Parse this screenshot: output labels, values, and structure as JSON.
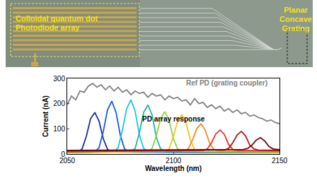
{
  "micrograph": {
    "labels": [
      {
        "lines": [
          "Colloidal quantum dot",
          "Photodiode array"
        ]
      },
      {
        "lines": [
          "Planar",
          "Concave",
          "Grating"
        ]
      }
    ]
  },
  "chart_data": {
    "type": "line",
    "xlabel": "Wavelength (nm)",
    "ylabel": "Current (nA)",
    "xlim": [
      2050,
      2150
    ],
    "xticks": [
      2050,
      2100,
      2150
    ],
    "ylim": [
      0,
      300
    ],
    "yticks": [
      0,
      100,
      200,
      300
    ],
    "grid": false,
    "annotations": [
      {
        "text": "Ref PD (grating coupler)",
        "x": 2125,
        "y": 282,
        "color": "#808080"
      },
      {
        "text": "PD array response",
        "x": 2100,
        "y": 140,
        "color": "#000000"
      }
    ],
    "series": [
      {
        "color": "#808080",
        "x": [
          2050,
          2052,
          2054,
          2056,
          2058,
          2060,
          2062,
          2064,
          2066,
          2068,
          2070,
          2072,
          2074,
          2076,
          2078,
          2080,
          2082,
          2084,
          2086,
          2088,
          2090,
          2092,
          2094,
          2096,
          2098,
          2100,
          2102,
          2104,
          2106,
          2108,
          2110,
          2112,
          2114,
          2116,
          2118,
          2120,
          2122,
          2124,
          2126,
          2128,
          2130,
          2132,
          2134,
          2136,
          2138,
          2140,
          2142,
          2144,
          2146,
          2148,
          2150
        ],
        "values": [
          195,
          230,
          215,
          250,
          245,
          270,
          280,
          265,
          275,
          255,
          270,
          250,
          265,
          245,
          255,
          235,
          250,
          240,
          245,
          225,
          240,
          230,
          235,
          215,
          230,
          220,
          225,
          210,
          215,
          195,
          220,
          200,
          205,
          185,
          195,
          180,
          190,
          170,
          180,
          165,
          175,
          160,
          165,
          150,
          155,
          145,
          140,
          130,
          135,
          125,
          120
        ]
      },
      {
        "color": "#1f2a9e",
        "x": [
          2050,
          2055,
          2057,
          2059,
          2061,
          2063,
          2065,
          2067,
          2069,
          2071,
          2150
        ],
        "values": [
          5,
          8,
          20,
          70,
          140,
          165,
          130,
          60,
          18,
          8,
          5
        ]
      },
      {
        "color": "#1a5adf",
        "x": [
          2050,
          2063,
          2065,
          2067,
          2069,
          2071,
          2073,
          2075,
          2077,
          2079,
          2150
        ],
        "values": [
          5,
          8,
          25,
          90,
          175,
          210,
          165,
          75,
          20,
          8,
          5
        ]
      },
      {
        "color": "#18c6e8",
        "x": [
          2050,
          2072,
          2074,
          2076,
          2078,
          2080,
          2082,
          2084,
          2086,
          2088,
          2150
        ],
        "values": [
          6,
          9,
          25,
          95,
          180,
          215,
          170,
          75,
          22,
          9,
          6
        ]
      },
      {
        "color": "#1fb89a",
        "x": [
          2050,
          2080,
          2082,
          2084,
          2086,
          2088,
          2090,
          2092,
          2094,
          2096,
          2150
        ],
        "values": [
          6,
          9,
          22,
          85,
          165,
          195,
          155,
          65,
          20,
          9,
          6
        ]
      },
      {
        "color": "#8fd63a",
        "x": [
          2050,
          2088,
          2090,
          2092,
          2094,
          2096,
          2098,
          2100,
          2102,
          2104,
          2150
        ],
        "values": [
          7,
          10,
          22,
          75,
          140,
          168,
          135,
          60,
          20,
          10,
          7
        ]
      },
      {
        "color": "#f0c419",
        "x": [
          2050,
          2096,
          2098,
          2100,
          2102,
          2104,
          2106,
          2108,
          2110,
          2112,
          2150
        ],
        "values": [
          8,
          10,
          20,
          70,
          130,
          155,
          125,
          55,
          18,
          10,
          8
        ]
      },
      {
        "color": "#f08c1c",
        "x": [
          2050,
          2105,
          2107,
          2109,
          2111,
          2113,
          2115,
          2117,
          2119,
          2121,
          2150
        ],
        "values": [
          8,
          12,
          20,
          55,
          100,
          120,
          95,
          45,
          18,
          12,
          10
        ]
      },
      {
        "color": "#e8312a",
        "x": [
          2050,
          2114,
          2116,
          2118,
          2120,
          2122,
          2124,
          2126,
          2128,
          2130,
          2150
        ],
        "values": [
          10,
          14,
          20,
          45,
          80,
          95,
          78,
          38,
          18,
          14,
          12
        ]
      },
      {
        "color": "#b0161e",
        "x": [
          2050,
          2124,
          2126,
          2128,
          2130,
          2132,
          2134,
          2136,
          2138,
          2140,
          2150
        ],
        "values": [
          12,
          16,
          22,
          45,
          75,
          90,
          72,
          35,
          20,
          16,
          14
        ]
      },
      {
        "color": "#6e0a12",
        "x": [
          2050,
          2133,
          2135,
          2137,
          2139,
          2141,
          2143,
          2145,
          2147,
          2149,
          2150
        ],
        "values": [
          14,
          18,
          22,
          35,
          55,
          65,
          52,
          30,
          20,
          18,
          17
        ]
      }
    ]
  }
}
